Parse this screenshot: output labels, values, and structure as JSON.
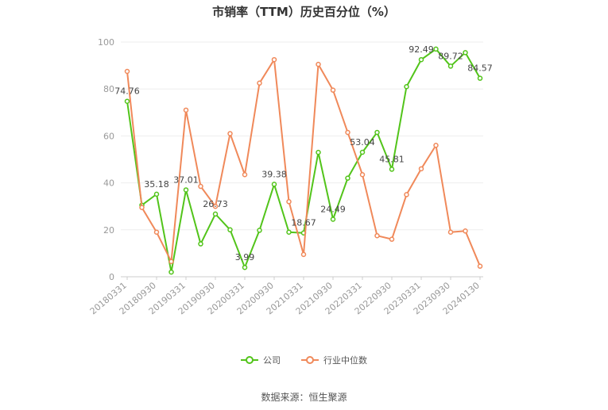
{
  "chart_data": {
    "type": "line",
    "title": "市销率（TTM）历史百分位（%）",
    "source": "数据来源：恒生聚源",
    "ylim": [
      0,
      100
    ],
    "yticks": [
      0,
      20,
      40,
      60,
      80,
      100
    ],
    "x_tick_labels": [
      "20180331",
      "20180930",
      "20190331",
      "20190930",
      "20200331",
      "20200930",
      "20210331",
      "20210930",
      "20220331",
      "20220930",
      "20230331",
      "20230930",
      "20240130"
    ],
    "x": [
      "20180331",
      "20180630",
      "20180930",
      "20181231",
      "20190331",
      "20190630",
      "20190930",
      "20191231",
      "20200331",
      "20200630",
      "20200930",
      "20201231",
      "20210331",
      "20210630",
      "20210930",
      "20211231",
      "20220331",
      "20220630",
      "20220930",
      "20221231",
      "20230331",
      "20230630",
      "20230930",
      "20231231",
      "20240130"
    ],
    "series": [
      {
        "name": "公司",
        "color": "#52c41a",
        "values": [
          74.76,
          30.5,
          35.18,
          2.0,
          37.01,
          14.0,
          26.73,
          20.0,
          3.99,
          19.8,
          39.38,
          19.0,
          18.67,
          53.0,
          24.49,
          42.0,
          53.04,
          61.5,
          45.81,
          81.0,
          92.49,
          97.0,
          89.72,
          95.5,
          84.57
        ]
      },
      {
        "name": "行业中位数",
        "color": "#f0895a",
        "values": [
          87.5,
          29.5,
          19.0,
          6.5,
          71.0,
          38.5,
          30.0,
          61.0,
          43.5,
          82.5,
          92.5,
          32.0,
          9.5,
          90.5,
          79.5,
          61.5,
          43.5,
          17.5,
          16.0,
          35.0,
          46.0,
          56.0,
          19.0,
          19.5,
          4.5
        ]
      }
    ],
    "data_labels": [
      {
        "series": 0,
        "index": 0,
        "text": "74.76"
      },
      {
        "series": 0,
        "index": 2,
        "text": "35.18"
      },
      {
        "series": 0,
        "index": 4,
        "text": "37.01"
      },
      {
        "series": 0,
        "index": 6,
        "text": "26.73"
      },
      {
        "series": 0,
        "index": 8,
        "text": "3.99"
      },
      {
        "series": 0,
        "index": 10,
        "text": "39.38"
      },
      {
        "series": 0,
        "index": 12,
        "text": "18.67"
      },
      {
        "series": 0,
        "index": 14,
        "text": "24.49"
      },
      {
        "series": 0,
        "index": 16,
        "text": "53.04"
      },
      {
        "series": 0,
        "index": 18,
        "text": "45.81"
      },
      {
        "series": 0,
        "index": 20,
        "text": "92.49"
      },
      {
        "series": 0,
        "index": 22,
        "text": "89.72"
      },
      {
        "series": 0,
        "index": 24,
        "text": "84.57"
      }
    ],
    "grid": true,
    "legend_position": "bottom"
  }
}
